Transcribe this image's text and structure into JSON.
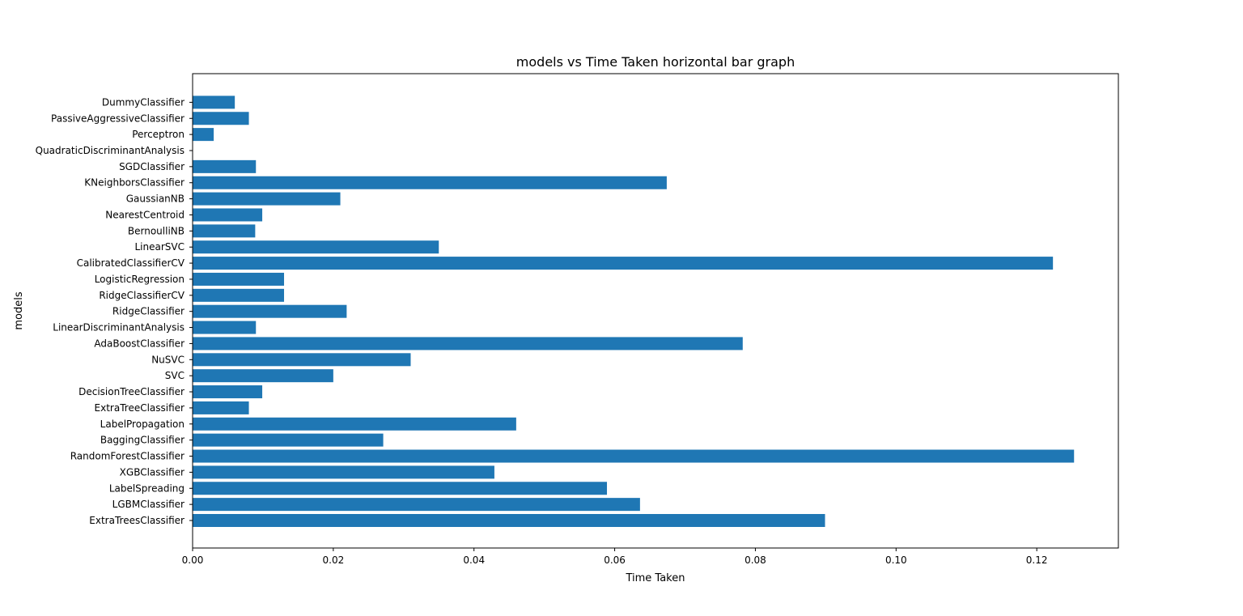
{
  "chart_data": {
    "type": "bar",
    "orientation": "horizontal",
    "title": "models vs Time Taken horizontal bar graph",
    "xlabel": "Time Taken",
    "ylabel": "models",
    "xlim": [
      0,
      0.1316
    ],
    "xticks": [
      "0.00",
      "0.02",
      "0.04",
      "0.06",
      "0.08",
      "0.10",
      "0.12"
    ],
    "grid": false,
    "bar_color": "#1f77b4",
    "categories": [
      "ExtraTreesClassifier",
      "LGBMClassifier",
      "LabelSpreading",
      "XGBClassifier",
      "RandomForestClassifier",
      "BaggingClassifier",
      "LabelPropagation",
      "ExtraTreeClassifier",
      "DecisionTreeClassifier",
      "SVC",
      "NuSVC",
      "AdaBoostClassifier",
      "LinearDiscriminantAnalysis",
      "RidgeClassifier",
      "RidgeClassifierCV",
      "LogisticRegression",
      "CalibratedClassifierCV",
      "LinearSVC",
      "BernoulliNB",
      "NearestCentroid",
      "GaussianNB",
      "KNeighborsClassifier",
      "SGDClassifier",
      "QuadraticDiscriminantAnalysis",
      "Perceptron",
      "PassiveAggressiveClassifier",
      "DummyClassifier"
    ],
    "values": [
      0.0899,
      0.0636,
      0.0589,
      0.0429,
      0.1253,
      0.0271,
      0.046,
      0.008,
      0.0099,
      0.02,
      0.031,
      0.0782,
      0.009,
      0.0219,
      0.013,
      0.013,
      0.1223,
      0.035,
      0.0089,
      0.0099,
      0.021,
      0.0674,
      0.009,
      0.0,
      0.003,
      0.008,
      0.006
    ]
  }
}
